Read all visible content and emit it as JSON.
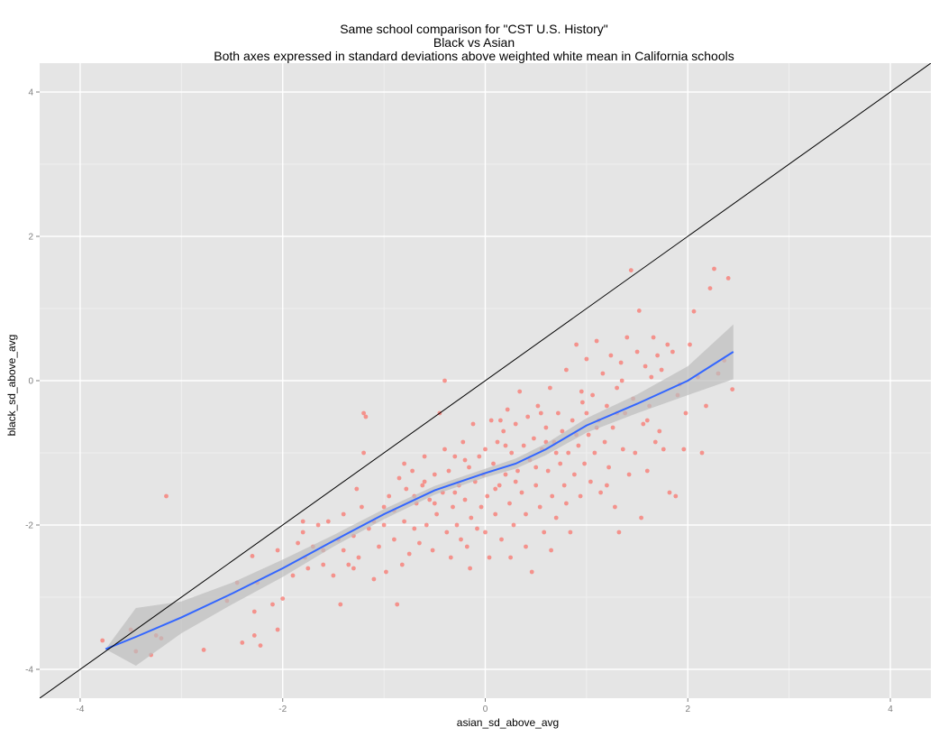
{
  "chart_data": {
    "type": "scatter",
    "title_lines": [
      "Same school comparison for \"CST U.S. History\"",
      "Black vs Asian",
      "Both axes expressed in standard deviations above weighted white mean in California schools"
    ],
    "xlabel": "asian_sd_above_avg",
    "ylabel": "black_sd_above_avg",
    "xlim": [
      -4.4,
      4.4
    ],
    "ylim": [
      -4.4,
      4.4
    ],
    "xticks": [
      -4,
      -2,
      0,
      2,
      4
    ],
    "yticks": [
      -4,
      -2,
      0,
      2,
      4
    ],
    "grid": true,
    "colors": {
      "panel": "#e5e5e5",
      "grid_major": "#ffffff",
      "grid_minor": "#f2f2f2",
      "points": "#f8766d",
      "smooth": "#3366ff",
      "band": "#bdbdbd",
      "reference_line": "#000000"
    },
    "reference_line": {
      "slope": 1,
      "intercept": 0
    },
    "smooth": {
      "x": [
        -3.75,
        -3.45,
        -3.0,
        -2.5,
        -2.0,
        -1.5,
        -1.0,
        -0.5,
        0.0,
        0.3,
        0.6,
        1.0,
        1.5,
        2.0,
        2.45
      ],
      "y": [
        -3.72,
        -3.55,
        -3.28,
        -2.95,
        -2.6,
        -2.22,
        -1.85,
        -1.52,
        -1.28,
        -1.15,
        -0.95,
        -0.62,
        -0.32,
        0.0,
        0.4
      ],
      "lower": [
        -3.72,
        -3.95,
        -3.5,
        -3.1,
        -2.72,
        -2.3,
        -1.92,
        -1.58,
        -1.34,
        -1.22,
        -1.03,
        -0.72,
        -0.45,
        -0.2,
        0.02
      ],
      "upper": [
        -3.72,
        -3.15,
        -3.06,
        -2.8,
        -2.48,
        -2.14,
        -1.78,
        -1.46,
        -1.22,
        -1.08,
        -0.87,
        -0.52,
        -0.19,
        0.2,
        0.78
      ]
    },
    "points": [
      [
        -3.78,
        -3.6
      ],
      [
        -3.5,
        -3.45
      ],
      [
        -3.45,
        -3.75
      ],
      [
        -3.3,
        -3.8
      ],
      [
        -3.25,
        -3.53
      ],
      [
        -3.2,
        -3.57
      ],
      [
        -3.15,
        -1.6
      ],
      [
        -2.78,
        -3.73
      ],
      [
        -2.55,
        -3.05
      ],
      [
        -2.45,
        -2.8
      ],
      [
        -2.4,
        -3.63
      ],
      [
        -2.3,
        -2.43
      ],
      [
        -2.28,
        -3.2
      ],
      [
        -2.28,
        -3.53
      ],
      [
        -2.25,
        -2.8
      ],
      [
        -2.22,
        -3.67
      ],
      [
        -2.1,
        -3.1
      ],
      [
        -2.05,
        -3.45
      ],
      [
        -2.0,
        -3.02
      ],
      [
        -1.9,
        -2.7
      ],
      [
        -1.85,
        -2.25
      ],
      [
        -1.8,
        -1.95
      ],
      [
        -1.78,
        -2.45
      ],
      [
        -1.75,
        -2.6
      ],
      [
        -1.7,
        -2.3
      ],
      [
        -1.65,
        -2.0
      ],
      [
        -1.6,
        -2.55
      ],
      [
        -1.55,
        -1.95
      ],
      [
        -1.5,
        -2.7
      ],
      [
        -1.45,
        -2.2
      ],
      [
        -1.43,
        -3.1
      ],
      [
        -1.4,
        -2.35
      ],
      [
        -1.35,
        -2.55
      ],
      [
        -1.3,
        -2.15
      ],
      [
        -1.27,
        -1.5
      ],
      [
        -1.25,
        -2.45
      ],
      [
        -1.22,
        -1.75
      ],
      [
        -1.2,
        -0.45
      ],
      [
        -1.18,
        -0.5
      ],
      [
        -1.2,
        -1.0
      ],
      [
        -1.15,
        -2.05
      ],
      [
        -1.1,
        -1.95
      ],
      [
        -1.05,
        -2.3
      ],
      [
        -1.0,
        -1.75
      ],
      [
        -0.98,
        -2.65
      ],
      [
        -0.95,
        -1.6
      ],
      [
        -0.9,
        -2.2
      ],
      [
        -0.87,
        -3.1
      ],
      [
        -0.85,
        -1.35
      ],
      [
        -0.82,
        -2.55
      ],
      [
        -0.8,
        -1.95
      ],
      [
        -0.78,
        -1.5
      ],
      [
        -0.75,
        -2.4
      ],
      [
        -0.72,
        -1.25
      ],
      [
        -0.7,
        -2.05
      ],
      [
        -0.68,
        -1.7
      ],
      [
        -0.65,
        -2.25
      ],
      [
        -0.62,
        -1.45
      ],
      [
        -0.6,
        -1.05
      ],
      [
        -0.58,
        -2.0
      ],
      [
        -0.55,
        -1.65
      ],
      [
        -0.52,
        -2.35
      ],
      [
        -0.5,
        -1.3
      ],
      [
        -0.48,
        -1.85
      ],
      [
        -0.45,
        -0.45
      ],
      [
        -0.42,
        -1.55
      ],
      [
        -0.4,
        0.0
      ],
      [
        -0.38,
        -2.1
      ],
      [
        -0.36,
        -1.25
      ],
      [
        -0.34,
        -2.45
      ],
      [
        -0.32,
        -1.75
      ],
      [
        -0.3,
        -1.05
      ],
      [
        -0.28,
        -2.0
      ],
      [
        -0.26,
        -1.45
      ],
      [
        -0.24,
        -2.2
      ],
      [
        -0.22,
        -0.85
      ],
      [
        -0.2,
        -1.65
      ],
      [
        -0.18,
        -2.3
      ],
      [
        -0.16,
        -1.2
      ],
      [
        -0.14,
        -1.9
      ],
      [
        -0.12,
        -0.6
      ],
      [
        -0.1,
        -1.4
      ],
      [
        -0.08,
        -2.05
      ],
      [
        -0.06,
        -1.05
      ],
      [
        -0.04,
        -1.75
      ],
      [
        -0.02,
        -1.3
      ],
      [
        0.0,
        -0.95
      ],
      [
        0.02,
        -1.6
      ],
      [
        0.04,
        -2.45
      ],
      [
        0.06,
        -0.55
      ],
      [
        0.08,
        -1.15
      ],
      [
        0.1,
        -1.85
      ],
      [
        0.12,
        -0.85
      ],
      [
        0.14,
        -1.45
      ],
      [
        0.16,
        -2.2
      ],
      [
        0.18,
        -0.7
      ],
      [
        0.2,
        -1.3
      ],
      [
        0.22,
        -0.4
      ],
      [
        0.24,
        -1.7
      ],
      [
        0.26,
        -1.0
      ],
      [
        0.28,
        -2.0
      ],
      [
        0.3,
        -0.6
      ],
      [
        0.32,
        -1.25
      ],
      [
        0.34,
        -0.15
      ],
      [
        0.36,
        -1.55
      ],
      [
        0.38,
        -0.9
      ],
      [
        0.4,
        -2.3
      ],
      [
        0.42,
        -0.5
      ],
      [
        0.44,
        -1.1
      ],
      [
        0.46,
        -2.65
      ],
      [
        0.48,
        -0.8
      ],
      [
        0.5,
        -1.45
      ],
      [
        0.52,
        -0.35
      ],
      [
        0.54,
        -1.75
      ],
      [
        0.56,
        -0.95
      ],
      [
        0.58,
        -2.1
      ],
      [
        0.6,
        -0.65
      ],
      [
        0.62,
        -1.25
      ],
      [
        0.64,
        -0.1
      ],
      [
        0.66,
        -1.6
      ],
      [
        0.68,
        -0.85
      ],
      [
        0.7,
        -1.9
      ],
      [
        0.72,
        -0.45
      ],
      [
        0.74,
        -1.15
      ],
      [
        0.76,
        -0.7
      ],
      [
        0.78,
        -1.45
      ],
      [
        0.8,
        0.15
      ],
      [
        0.82,
        -1.0
      ],
      [
        0.84,
        -2.1
      ],
      [
        0.86,
        -0.55
      ],
      [
        0.88,
        -1.3
      ],
      [
        0.9,
        0.5
      ],
      [
        0.92,
        -0.9
      ],
      [
        0.94,
        -1.6
      ],
      [
        0.96,
        -0.3
      ],
      [
        0.98,
        -1.15
      ],
      [
        1.0,
        0.3
      ],
      [
        1.02,
        -0.75
      ],
      [
        1.04,
        -1.4
      ],
      [
        1.06,
        -0.2
      ],
      [
        1.08,
        -1.0
      ],
      [
        1.1,
        0.55
      ],
      [
        1.12,
        -0.55
      ],
      [
        1.14,
        -1.55
      ],
      [
        1.16,
        0.1
      ],
      [
        1.18,
        -0.85
      ],
      [
        1.2,
        -0.35
      ],
      [
        1.22,
        -1.2
      ],
      [
        1.24,
        0.35
      ],
      [
        1.26,
        -0.65
      ],
      [
        1.28,
        -1.75
      ],
      [
        1.3,
        -0.1
      ],
      [
        1.32,
        -2.1
      ],
      [
        1.34,
        0.25
      ],
      [
        1.36,
        -0.95
      ],
      [
        1.38,
        -0.45
      ],
      [
        1.4,
        0.6
      ],
      [
        1.42,
        -1.3
      ],
      [
        1.44,
        1.53
      ],
      [
        1.46,
        -0.25
      ],
      [
        1.48,
        -1.0
      ],
      [
        1.5,
        0.4
      ],
      [
        1.52,
        0.97
      ],
      [
        1.54,
        -1.9
      ],
      [
        1.56,
        -0.6
      ],
      [
        1.58,
        0.2
      ],
      [
        1.6,
        -1.25
      ],
      [
        1.62,
        -0.35
      ],
      [
        1.64,
        0.05
      ],
      [
        1.66,
        0.6
      ],
      [
        1.68,
        -0.85
      ],
      [
        1.7,
        0.35
      ],
      [
        1.72,
        -0.7
      ],
      [
        1.74,
        0.15
      ],
      [
        1.76,
        -0.95
      ],
      [
        1.8,
        0.5
      ],
      [
        1.82,
        -1.55
      ],
      [
        1.85,
        0.4
      ],
      [
        1.88,
        -1.6
      ],
      [
        1.92,
        -0.05
      ],
      [
        1.96,
        -0.95
      ],
      [
        1.98,
        -0.45
      ],
      [
        2.02,
        0.5
      ],
      [
        2.06,
        0.96
      ],
      [
        2.1,
        0.05
      ],
      [
        2.14,
        -1.0
      ],
      [
        2.18,
        -0.35
      ],
      [
        2.22,
        1.28
      ],
      [
        2.26,
        1.55
      ],
      [
        2.3,
        0.1
      ],
      [
        2.36,
        0.28
      ],
      [
        2.4,
        1.42
      ],
      [
        2.44,
        -0.12
      ],
      [
        -1.0,
        -2.0
      ],
      [
        -0.9,
        -1.8
      ],
      [
        -0.7,
        -1.6
      ],
      [
        -0.5,
        -1.7
      ],
      [
        -0.3,
        -1.55
      ],
      [
        0.1,
        -1.5
      ],
      [
        0.3,
        -1.4
      ],
      [
        0.5,
        -1.2
      ],
      [
        0.7,
        -1.0
      ],
      [
        0.9,
        -0.75
      ],
      [
        1.1,
        -0.65
      ],
      [
        1.3,
        -0.45
      ],
      [
        -0.6,
        -1.4
      ],
      [
        -0.2,
        -1.1
      ],
      [
        0.2,
        -0.9
      ],
      [
        0.6,
        -0.85
      ],
      [
        1.0,
        -0.45
      ],
      [
        -1.3,
        -2.6
      ],
      [
        -1.6,
        -2.35
      ],
      [
        -1.1,
        -2.75
      ],
      [
        0.0,
        -2.1
      ],
      [
        0.4,
        -1.85
      ],
      [
        0.8,
        -1.7
      ],
      [
        1.2,
        -1.45
      ],
      [
        -0.8,
        -1.15
      ],
      [
        -0.4,
        -0.95
      ],
      [
        0.15,
        -0.55
      ],
      [
        0.55,
        -0.45
      ],
      [
        0.95,
        -0.15
      ],
      [
        1.35,
        0.0
      ],
      [
        -0.15,
        -2.6
      ],
      [
        0.25,
        -2.45
      ],
      [
        0.65,
        -2.35
      ],
      [
        -1.4,
        -1.85
      ],
      [
        -1.8,
        -2.1
      ],
      [
        -2.05,
        -2.35
      ],
      [
        1.6,
        -0.55
      ],
      [
        1.9,
        -0.2
      ]
    ]
  }
}
